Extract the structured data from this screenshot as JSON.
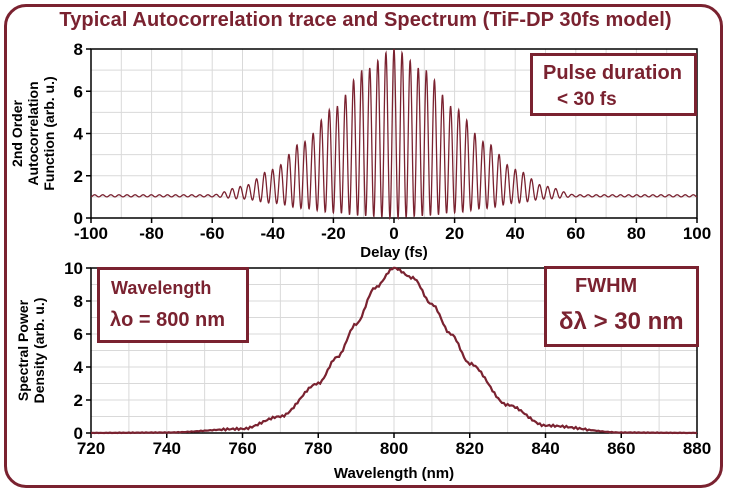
{
  "title": "Typical Autocorrelation trace and Spectrum (TiF-DP 30fs model)",
  "colors": {
    "accent": "#7a2230",
    "curve": "#7a2230",
    "grid": "#d9d9d9"
  },
  "annotations": {
    "pulse": {
      "line1": "Pulse duration",
      "line2": "< 30 fs"
    },
    "wavelength": {
      "line1": "Wavelength",
      "line2": "λo = 800 nm"
    },
    "fwhm": {
      "line1": "FWHM",
      "line2": "δλ > 30 nm"
    }
  },
  "chart_data": [
    {
      "type": "line",
      "xlabel": "Delay (fs)",
      "ylabel_lines": [
        "2nd Order",
        "Autocorrelation",
        "Function (arb. u.)"
      ],
      "xlim": [
        -100,
        100
      ],
      "ylim": [
        0,
        8
      ],
      "xticks": [
        -100,
        -80,
        -60,
        -40,
        -20,
        0,
        20,
        40,
        60,
        80,
        100
      ],
      "yticks": [
        0,
        2,
        4,
        6,
        8
      ],
      "grid": true,
      "series": [
        {
          "description": "interferometric autocorrelation, fringe period ~2.67 fs, peak 8 at 0 fs, background 1",
          "peak_value": 8,
          "background_value": 1,
          "fringe_period_fs": 2.67,
          "envelope_x": [
            0,
            10,
            20,
            30,
            40,
            50,
            60
          ],
          "envelope_upper": [
            8.0,
            7.0,
            5.2,
            3.6,
            2.3,
            1.5,
            1.1
          ],
          "envelope_lower": [
            0.0,
            0.1,
            0.25,
            0.45,
            0.7,
            0.9,
            1.0
          ]
        }
      ]
    },
    {
      "type": "line",
      "xlabel": "Wavelength (nm)",
      "ylabel_lines": [
        "Spectral Power",
        "Density (arb. u.)"
      ],
      "xlim": [
        720,
        880
      ],
      "ylim": [
        0,
        10
      ],
      "xticks": [
        720,
        740,
        760,
        780,
        800,
        820,
        840,
        860,
        880
      ],
      "yticks": [
        0,
        2,
        4,
        6,
        8,
        10
      ],
      "grid": true,
      "series": [
        {
          "x": [
            720,
            740,
            760,
            770,
            780,
            785,
            790,
            795,
            800,
            805,
            810,
            815,
            820,
            830,
            840,
            860,
            880
          ],
          "y": [
            0.0,
            0.03,
            0.25,
            1.0,
            3.0,
            4.6,
            6.6,
            8.8,
            10.0,
            9.4,
            7.8,
            6.0,
            4.2,
            1.7,
            0.45,
            0.03,
            0.0
          ]
        }
      ]
    }
  ]
}
